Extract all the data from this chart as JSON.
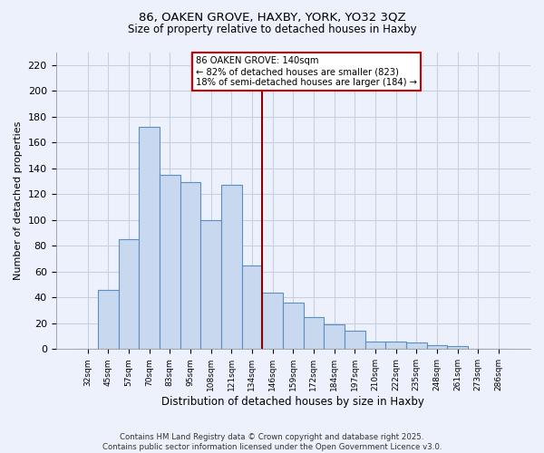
{
  "title": "86, OAKEN GROVE, HAXBY, YORK, YO32 3QZ",
  "subtitle": "Size of property relative to detached houses in Haxby",
  "xlabel": "Distribution of detached houses by size in Haxby",
  "ylabel": "Number of detached properties",
  "bar_labels": [
    "32sqm",
    "45sqm",
    "57sqm",
    "70sqm",
    "83sqm",
    "95sqm",
    "108sqm",
    "121sqm",
    "134sqm",
    "146sqm",
    "159sqm",
    "172sqm",
    "184sqm",
    "197sqm",
    "210sqm",
    "222sqm",
    "235sqm",
    "248sqm",
    "261sqm",
    "273sqm",
    "286sqm"
  ],
  "bar_values": [
    0,
    46,
    85,
    172,
    135,
    129,
    100,
    127,
    65,
    44,
    36,
    25,
    19,
    14,
    6,
    6,
    5,
    3,
    2,
    0,
    0
  ],
  "bar_color": "#c8d8ef",
  "bar_edge_color": "#5b8ec4",
  "vline_x_index": 8.5,
  "vline_color": "#8b0000",
  "annotation_line1": "86 OAKEN GROVE: 140sqm",
  "annotation_line2": "← 82% of detached houses are smaller (823)",
  "annotation_line3": "18% of semi-detached houses are larger (184) →",
  "ylim": [
    0,
    230
  ],
  "yticks": [
    0,
    20,
    40,
    60,
    80,
    100,
    120,
    140,
    160,
    180,
    200,
    220
  ],
  "background_color": "#edf1fb",
  "grid_color": "#c8cfe0",
  "footer_line1": "Contains HM Land Registry data © Crown copyright and database right 2025.",
  "footer_line2": "Contains public sector information licensed under the Open Government Licence v3.0."
}
